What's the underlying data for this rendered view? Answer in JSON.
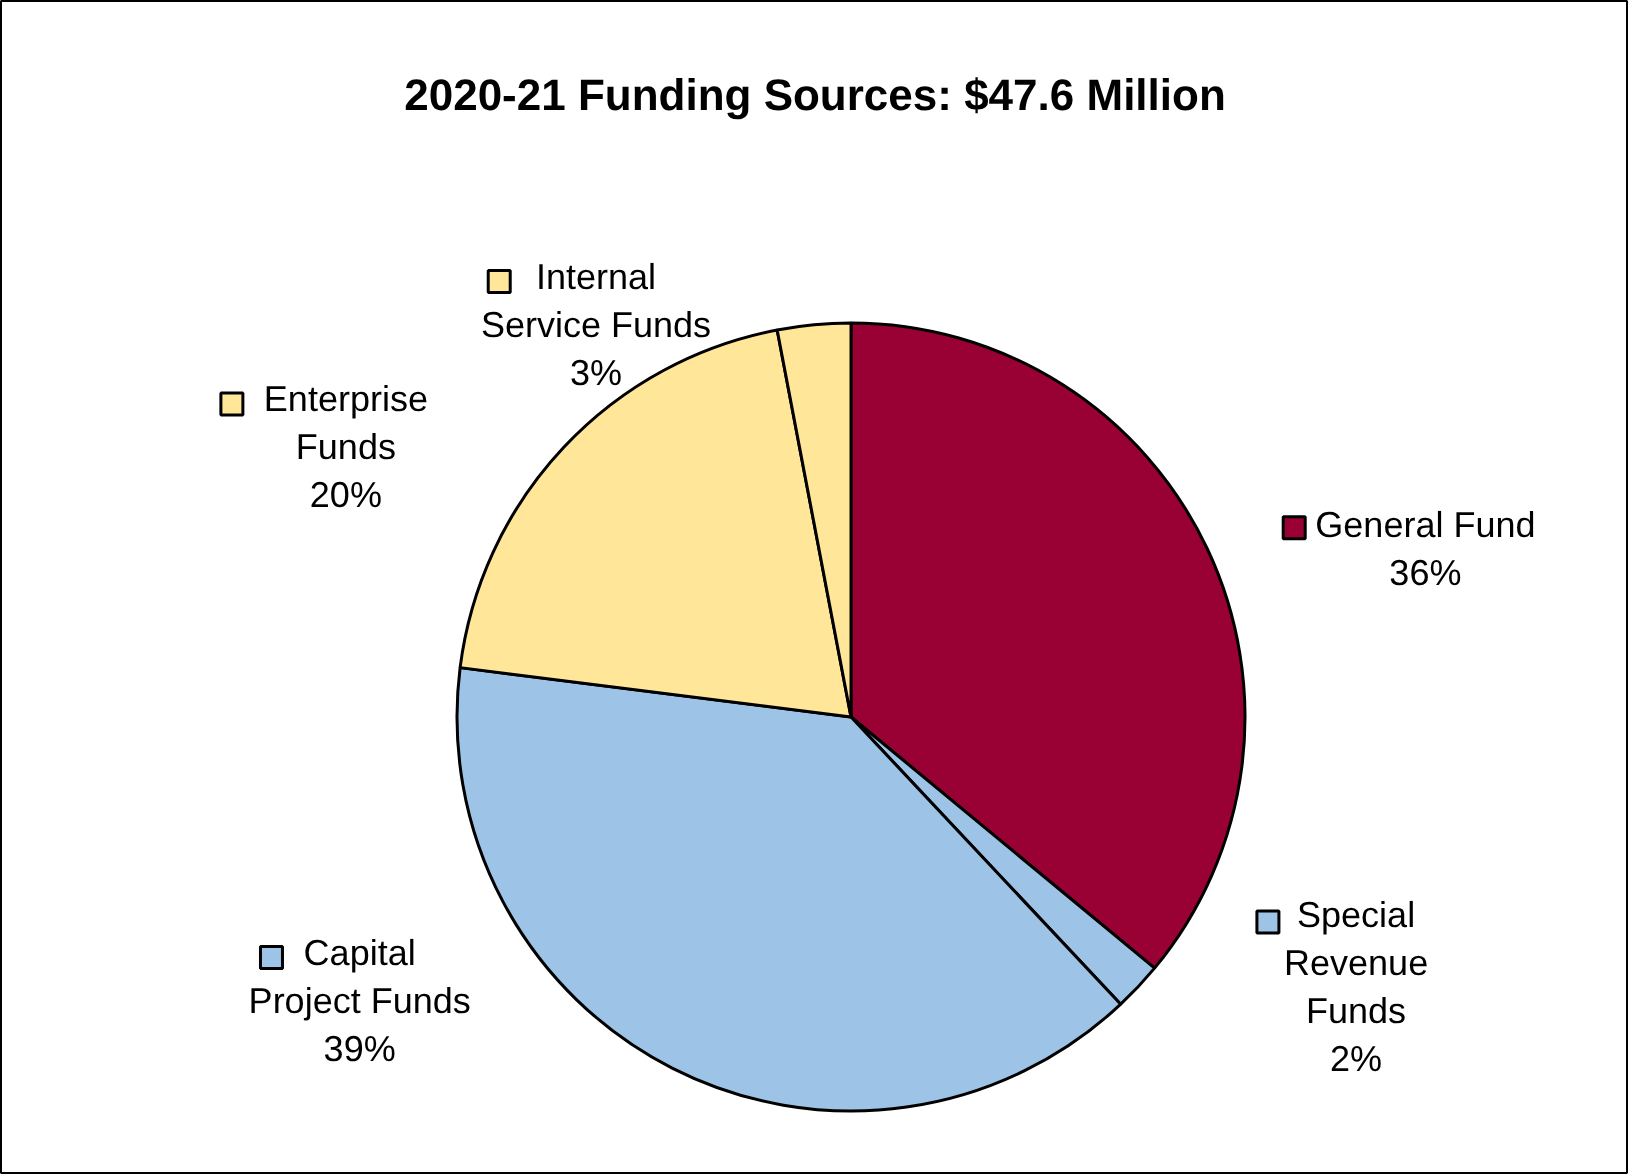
{
  "chart_data": {
    "type": "pie",
    "title": "2020-21 Funding Sources: $47.6 Million",
    "categories": [
      "General Fund",
      "Special\nRevenue\nFunds",
      "Capital\nProject Funds",
      "Enterprise\nFunds",
      "Internal\nService Funds"
    ],
    "values": [
      36,
      2,
      39,
      20,
      3
    ],
    "colors": [
      "#990033",
      "#9dc3e6",
      "#9dc3e6",
      "#ffe699",
      "#ffe699"
    ],
    "value_labels": [
      "36%",
      "2%",
      "39%",
      "20%",
      "3%"
    ],
    "legend": "right"
  }
}
